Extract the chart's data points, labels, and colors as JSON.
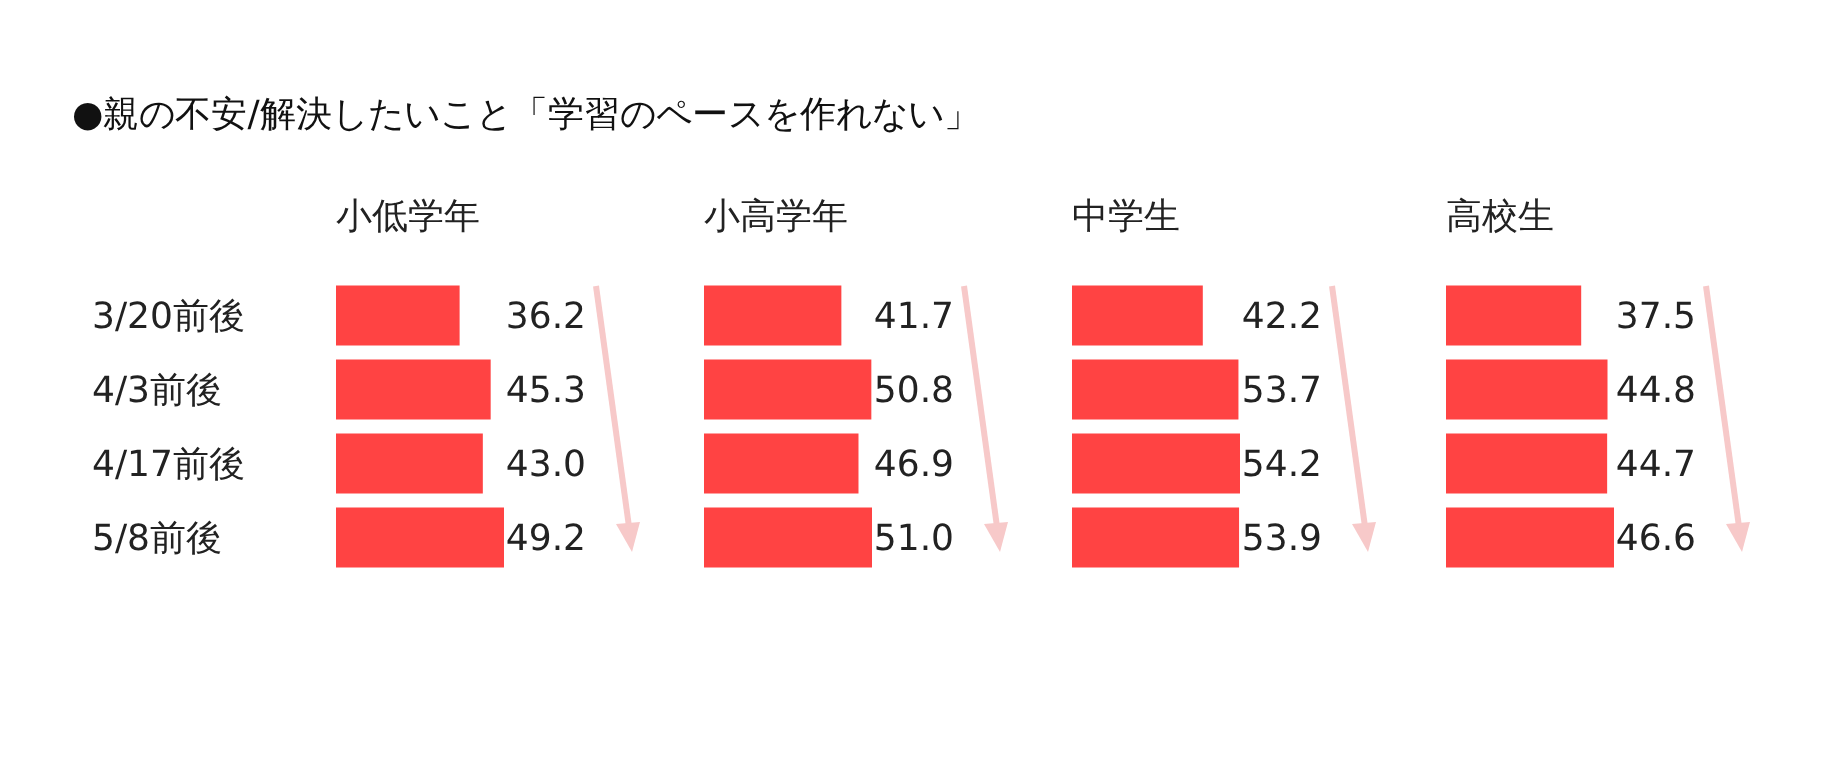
{
  "chart_data": [
    {
      "type": "bar",
      "orientation": "horizontal",
      "annotations": [
        "●親の不安/解決したいこと「学習のペースを作れない」"
      ],
      "title": "小低学年",
      "categories": [
        "3/20前後",
        "4/3前後",
        "4/17前後",
        "5/8前後"
      ],
      "values": [
        36.2,
        45.3,
        43.0,
        49.2
      ],
      "value_labels": [
        "36.2",
        "45.3",
        "43.0",
        "49.2"
      ],
      "color": "#ff4343",
      "tick_labels": "y"
    },
    {
      "type": "bar",
      "orientation": "horizontal",
      "title": "小高学年",
      "values": [
        41.7,
        50.8,
        46.9,
        51.0
      ],
      "value_labels": [
        "41.7",
        "50.8",
        "46.9",
        "51.0"
      ],
      "color": "#ff4343"
    },
    {
      "type": "bar",
      "orientation": "horizontal",
      "title": "中学生",
      "values": [
        42.2,
        53.7,
        54.2,
        53.9
      ],
      "value_labels": [
        "42.2",
        "53.7",
        "54.2",
        "53.9"
      ],
      "color": "#ff4343"
    },
    {
      "type": "bar",
      "orientation": "horizontal",
      "title": "高校生",
      "values": [
        37.5,
        44.8,
        44.7,
        46.6
      ],
      "value_labels": [
        "37.5",
        "44.8",
        "44.7",
        "46.6"
      ],
      "color": "#ff4343"
    }
  ]
}
